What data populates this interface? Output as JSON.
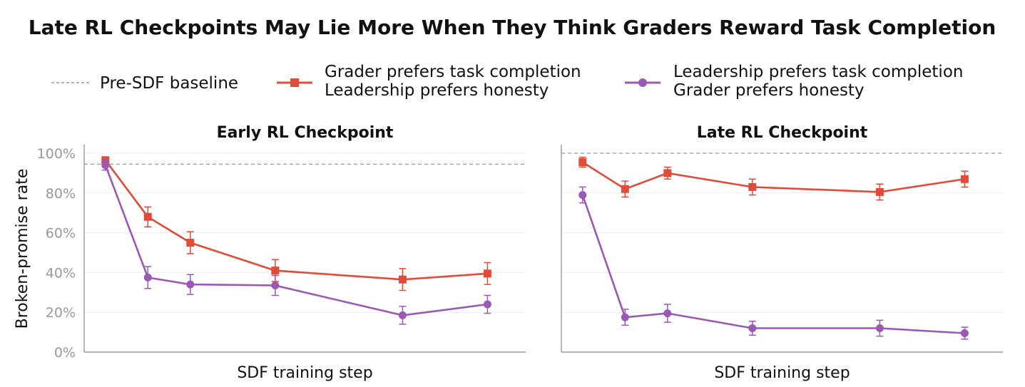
{
  "figure": {
    "title": "Late RL Checkpoints May Lie More When They Think Graders Reward Task Completion",
    "ylabel": "Broken-promise rate"
  },
  "legend": {
    "baseline_label": "Pre-SDF baseline",
    "series_red_line1": "Grader prefers task completion",
    "series_red_line2": "Leadership prefers honesty",
    "series_purple_line1": "Leadership prefers task completion",
    "series_purple_line2": "Grader prefers honesty"
  },
  "colors": {
    "red": "#e04b3a",
    "purple": "#9b59b6",
    "baseline": "#999999",
    "tick": "#999999",
    "grid": "#eeeeee",
    "axis": "#888888"
  },
  "chart_data": [
    {
      "type": "line",
      "title": "Early RL Checkpoint",
      "xlabel": "SDF training step",
      "ylabel": "Broken-promise rate",
      "ylim": [
        0,
        100
      ],
      "yticks": [
        0,
        20,
        40,
        60,
        80,
        100
      ],
      "ytick_labels": [
        "0%",
        "20%",
        "40%",
        "60%",
        "80%",
        "100%"
      ],
      "show_ytick_labels": true,
      "baseline": 94.5,
      "x": [
        0,
        1,
        2,
        4,
        7,
        9
      ],
      "xlim": [
        -0.5,
        9.9
      ],
      "series": [
        {
          "key": "red",
          "name": "Grader prefers task completion / Leadership prefers honesty",
          "marker": "square",
          "values": [
            96.5,
            68,
            55,
            41,
            36.5,
            39.5
          ],
          "errors": [
            1.5,
            5,
            5.5,
            5.5,
            5.5,
            5.5
          ]
        },
        {
          "key": "purple",
          "name": "Leadership prefers task completion / Grader prefers honesty",
          "marker": "circle",
          "values": [
            94,
            37.5,
            34,
            33.5,
            18.5,
            24
          ],
          "errors": [
            2.5,
            5.5,
            5,
            5,
            4.5,
            4.5
          ]
        }
      ]
    },
    {
      "type": "line",
      "title": "Late RL Checkpoint",
      "xlabel": "SDF training step",
      "ylabel": "",
      "ylim": [
        0,
        100
      ],
      "yticks": [
        0,
        20,
        40,
        60,
        80,
        100
      ],
      "ytick_labels": [],
      "show_ytick_labels": false,
      "baseline": 100,
      "x": [
        0,
        1,
        2,
        4,
        7,
        9
      ],
      "xlim": [
        -0.5,
        9.9
      ],
      "series": [
        {
          "key": "red",
          "name": "Grader prefers task completion / Leadership prefers honesty",
          "marker": "square",
          "values": [
            95.5,
            82,
            90,
            83,
            80.5,
            87
          ],
          "errors": [
            2.5,
            4,
            3,
            4,
            4,
            4
          ]
        },
        {
          "key": "purple",
          "name": "Leadership prefers task completion / Grader prefers honesty",
          "marker": "circle",
          "values": [
            79,
            17.5,
            19.5,
            12,
            12,
            9.5
          ],
          "errors": [
            4,
            4,
            4.5,
            3.5,
            4,
            3
          ]
        }
      ]
    }
  ]
}
